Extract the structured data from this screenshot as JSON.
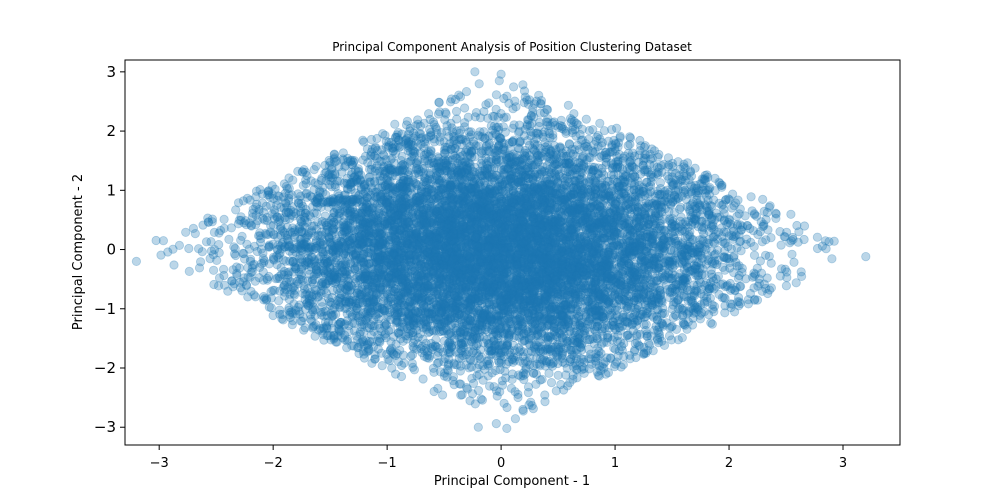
{
  "chart_data": {
    "type": "scatter",
    "title": "Principal Component Analysis of Position Clustering Dataset",
    "xlabel": "Principal Component - 1",
    "ylabel": "Principal Component - 2",
    "xlim": [
      -3.3,
      3.5
    ],
    "ylim": [
      -3.3,
      3.2
    ],
    "xticks": [
      -3,
      -2,
      -1,
      0,
      1,
      2,
      3
    ],
    "yticks": [
      -3,
      -2,
      -1,
      0,
      1,
      2,
      3
    ],
    "xtick_labels": [
      "−3",
      "−2",
      "−1",
      "0",
      "1",
      "2",
      "3"
    ],
    "ytick_labels": [
      "−3",
      "−2",
      "−1",
      "0",
      "1",
      "2",
      "3"
    ],
    "grid": false,
    "marker_color": "#1f77b4",
    "marker_alpha": 0.3,
    "point_count": 10000,
    "distribution": "dense diamond-shaped cloud bounded by |x|/3.2 + |y|/3 <= 1, densest near the origin",
    "notable_points": [
      {
        "x": -3.2,
        "y": -0.2
      },
      {
        "x": 3.2,
        "y": -0.12
      },
      {
        "x": -0.23,
        "y": 3.0
      },
      {
        "x": 0.0,
        "y": 2.96
      },
      {
        "x": 0.05,
        "y": -3.02
      },
      {
        "x": -0.2,
        "y": -3.0
      }
    ]
  }
}
